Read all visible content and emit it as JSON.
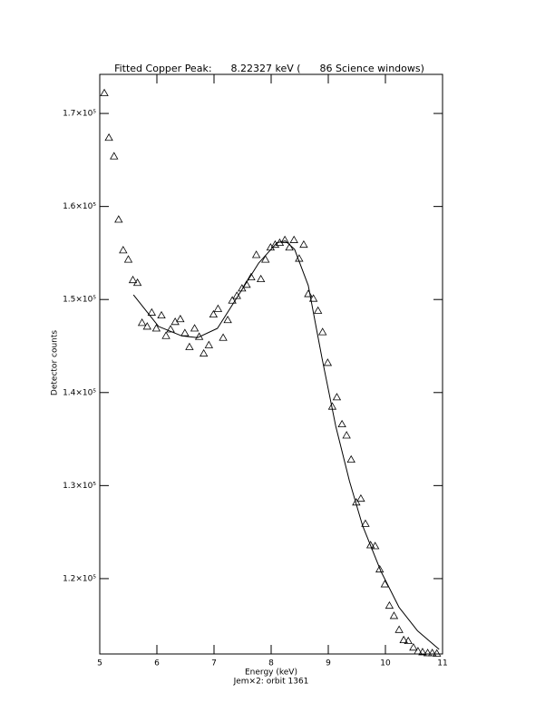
{
  "chart_data": {
    "type": "scatter",
    "title": "Fitted Copper Peak:      8.22327 keV (      86 Science windows)",
    "x_label": "Energy (keV)",
    "subtitle": "Jem×2: orbit 1361",
    "y_label": "Detector counts",
    "xlim": [
      5,
      11
    ],
    "xticks": [
      5,
      6,
      7,
      8,
      9,
      10,
      11
    ],
    "ylim": [
      111900,
      174200
    ],
    "yticks": [
      {
        "value": 120000,
        "label": "1.2×10⁵"
      },
      {
        "value": 130000,
        "label": "1.3×10⁵"
      },
      {
        "value": 140000,
        "label": "1.4×10⁵"
      },
      {
        "value": 150000,
        "label": "1.5×10⁵"
      },
      {
        "value": 160000,
        "label": "1.6×10⁵"
      },
      {
        "value": 170000,
        "label": "1.7×10⁵"
      }
    ],
    "color": "#000000",
    "points": {
      "x": [
        5.08,
        5.16,
        5.25,
        5.33,
        5.41,
        5.5,
        5.58,
        5.66,
        5.74,
        5.83,
        5.91,
        5.99,
        6.08,
        6.16,
        6.24,
        6.32,
        6.41,
        6.49,
        6.57,
        6.66,
        6.74,
        6.82,
        6.91,
        6.99,
        7.07,
        7.16,
        7.24,
        7.32,
        7.4,
        7.49,
        7.57,
        7.65,
        7.74,
        7.82,
        7.9,
        7.99,
        8.07,
        8.15,
        8.24,
        8.32,
        8.4,
        8.49,
        8.57,
        8.65,
        8.74,
        8.82,
        8.9,
        8.99,
        9.07,
        9.15,
        9.24,
        9.32,
        9.4,
        9.49,
        9.57,
        9.65,
        9.74,
        9.82,
        9.9,
        9.99,
        10.07,
        10.15,
        10.24,
        10.32,
        10.4,
        10.49,
        10.57,
        10.65,
        10.74,
        10.82,
        10.9
      ],
      "y": [
        172200,
        167400,
        165400,
        158600,
        155300,
        154300,
        152100,
        151800,
        147500,
        147100,
        148600,
        146900,
        148300,
        146100,
        146800,
        147600,
        147900,
        146400,
        144900,
        146900,
        146000,
        144200,
        145100,
        148400,
        149000,
        145900,
        147800,
        149900,
        150400,
        151200,
        151600,
        152400,
        154800,
        152200,
        154300,
        155600,
        155900,
        156100,
        156400,
        155600,
        156400,
        154400,
        155900,
        150600,
        150100,
        148800,
        146500,
        143200,
        138500,
        139500,
        136600,
        135400,
        132800,
        128200,
        128600,
        125900,
        123600,
        123500,
        121000,
        119400,
        117100,
        116000,
        114500,
        113400,
        113300,
        112600,
        112200,
        112100,
        112000,
        112000,
        111950
      ]
    },
    "fit": {
      "x": [
        5.59,
        6.03,
        6.43,
        6.71,
        7.06,
        7.38,
        7.78,
        8.1,
        8.25,
        8.41,
        8.65,
        8.89,
        9.13,
        9.37,
        9.6,
        9.92,
        10.24,
        10.56,
        10.94
      ],
      "y": [
        150500,
        147100,
        146100,
        145900,
        146900,
        150000,
        153900,
        156100,
        156300,
        155400,
        151500,
        143700,
        136400,
        130500,
        125700,
        120800,
        116900,
        114400,
        112400
      ]
    }
  }
}
